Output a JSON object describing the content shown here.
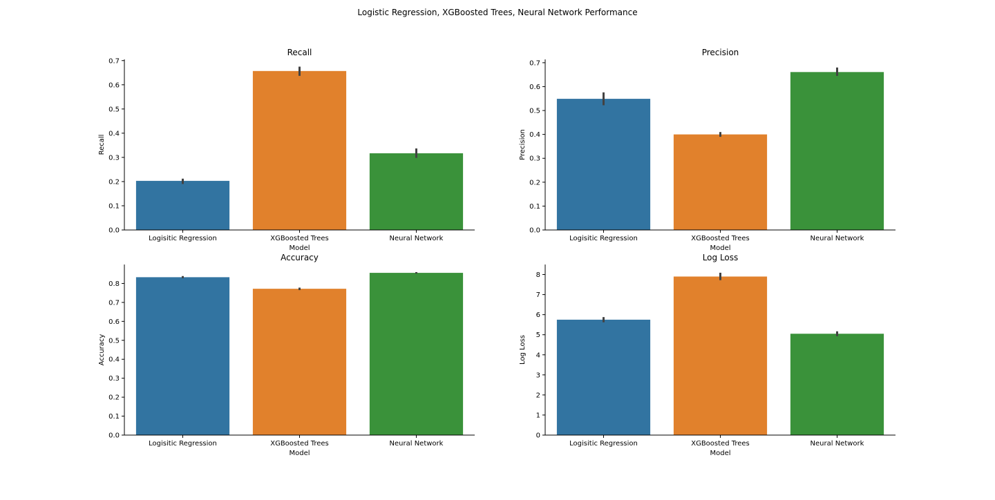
{
  "figure_title": "Logistic Regression, XGBoosted Trees, Neural Network Performance",
  "colors": {
    "blue": "#3274a1",
    "orange": "#e1812c",
    "green": "#3a923a",
    "errorbar": "#424242",
    "axis": "#000000"
  },
  "chart_data": [
    {
      "type": "bar",
      "title": "Recall",
      "xlabel": "Model",
      "ylabel": "Recall",
      "categories": [
        "Logisitic Regression",
        "XGBoosted Trees",
        "Neural Network"
      ],
      "values": [
        0.203,
        0.657,
        0.317
      ],
      "errors": [
        [
          0.19,
          0.212
        ],
        [
          0.637,
          0.675
        ],
        [
          0.298,
          0.337
        ]
      ],
      "yticks": [
        "0.0",
        "0.1",
        "0.2",
        "0.3",
        "0.4",
        "0.5",
        "0.6",
        "0.7"
      ],
      "ylim": [
        0,
        0.705
      ]
    },
    {
      "type": "bar",
      "title": "Precision",
      "xlabel": "Model",
      "ylabel": "Precision",
      "categories": [
        "Logisitic Regression",
        "XGBoosted Trees",
        "Neural Network"
      ],
      "values": [
        0.549,
        0.4,
        0.661
      ],
      "errors": [
        [
          0.522,
          0.576
        ],
        [
          0.39,
          0.41
        ],
        [
          0.645,
          0.68
        ]
      ],
      "yticks": [
        "0.0",
        "0.1",
        "0.2",
        "0.3",
        "0.4",
        "0.5",
        "0.6",
        "0.7"
      ],
      "ylim": [
        0,
        0.714
      ]
    },
    {
      "type": "bar",
      "title": "Accuracy",
      "xlabel": "Model",
      "ylabel": "Accuracy",
      "categories": [
        "Logisitic Regression",
        "XGBoosted Trees",
        "Neural Network"
      ],
      "values": [
        0.833,
        0.772,
        0.856
      ],
      "errors": [
        [
          0.828,
          0.839
        ],
        [
          0.765,
          0.778
        ],
        [
          0.852,
          0.86
        ]
      ],
      "yticks": [
        "0.0",
        "0.1",
        "0.2",
        "0.3",
        "0.4",
        "0.5",
        "0.6",
        "0.7",
        "0.8"
      ],
      "ylim": [
        0,
        0.9
      ]
    },
    {
      "type": "bar",
      "title": "Log Loss",
      "xlabel": "Model",
      "ylabel": "Log Loss",
      "categories": [
        "Logisitic Regression",
        "XGBoosted Trees",
        "Neural Network"
      ],
      "values": [
        5.75,
        7.9,
        5.05
      ],
      "errors": [
        [
          5.62,
          5.88
        ],
        [
          7.72,
          8.09
        ],
        [
          4.93,
          5.17
        ]
      ],
      "yticks": [
        "0",
        "1",
        "2",
        "3",
        "4",
        "5",
        "6",
        "7",
        "8"
      ],
      "ylim": [
        0,
        8.5
      ]
    }
  ]
}
